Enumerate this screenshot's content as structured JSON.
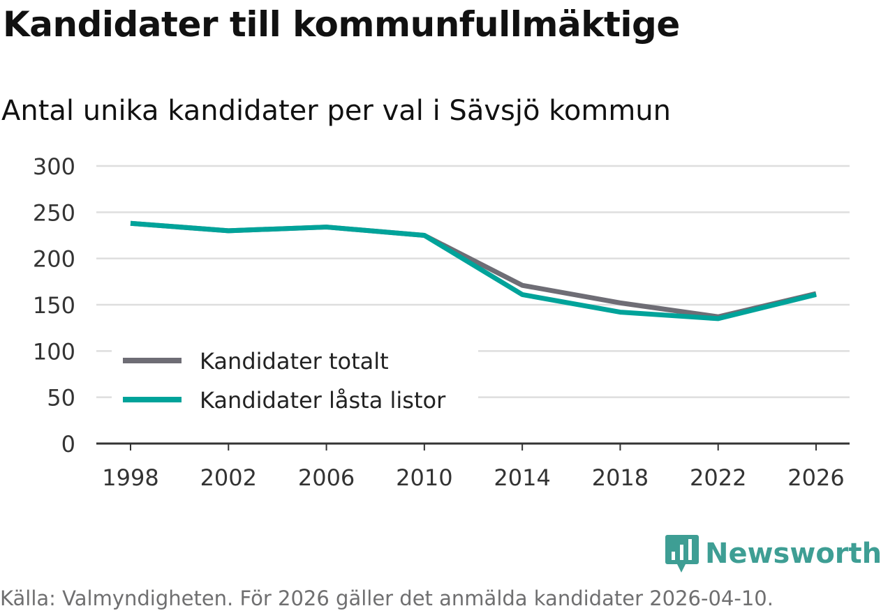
{
  "title": "Kandidater till kommunfullmäktige",
  "subtitle": "Antal unika kandidater per val i Sävsjö kommun",
  "source": "Källa: Valmyndigheten. För 2026 gäller det anmälda kandidater 2026-04-10.",
  "logo": "Newsworthy",
  "chart_data": {
    "type": "line",
    "title": "Kandidater till kommunfullmäktige",
    "subtitle": "Antal unika kandidater per val i Sävsjö kommun",
    "x": [
      1998,
      2002,
      2006,
      2010,
      2014,
      2018,
      2022,
      2026
    ],
    "xticks": [
      "1998",
      "2002",
      "2006",
      "2010",
      "2014",
      "2018",
      "2022",
      "2026"
    ],
    "yticks": [
      "0",
      "50",
      "100",
      "150",
      "200",
      "250",
      "300"
    ],
    "ylim": [
      0,
      300
    ],
    "grid": true,
    "legend": "bottom-left",
    "series": [
      {
        "name": "Kandidater totalt",
        "color": "#6e6d75",
        "values": [
          238,
          230,
          234,
          225,
          171,
          152,
          137,
          162
        ]
      },
      {
        "name": "Kandidater låsta listor",
        "color": "#00a39a",
        "values": [
          238,
          230,
          234,
          225,
          161,
          142,
          135,
          161
        ]
      }
    ]
  }
}
